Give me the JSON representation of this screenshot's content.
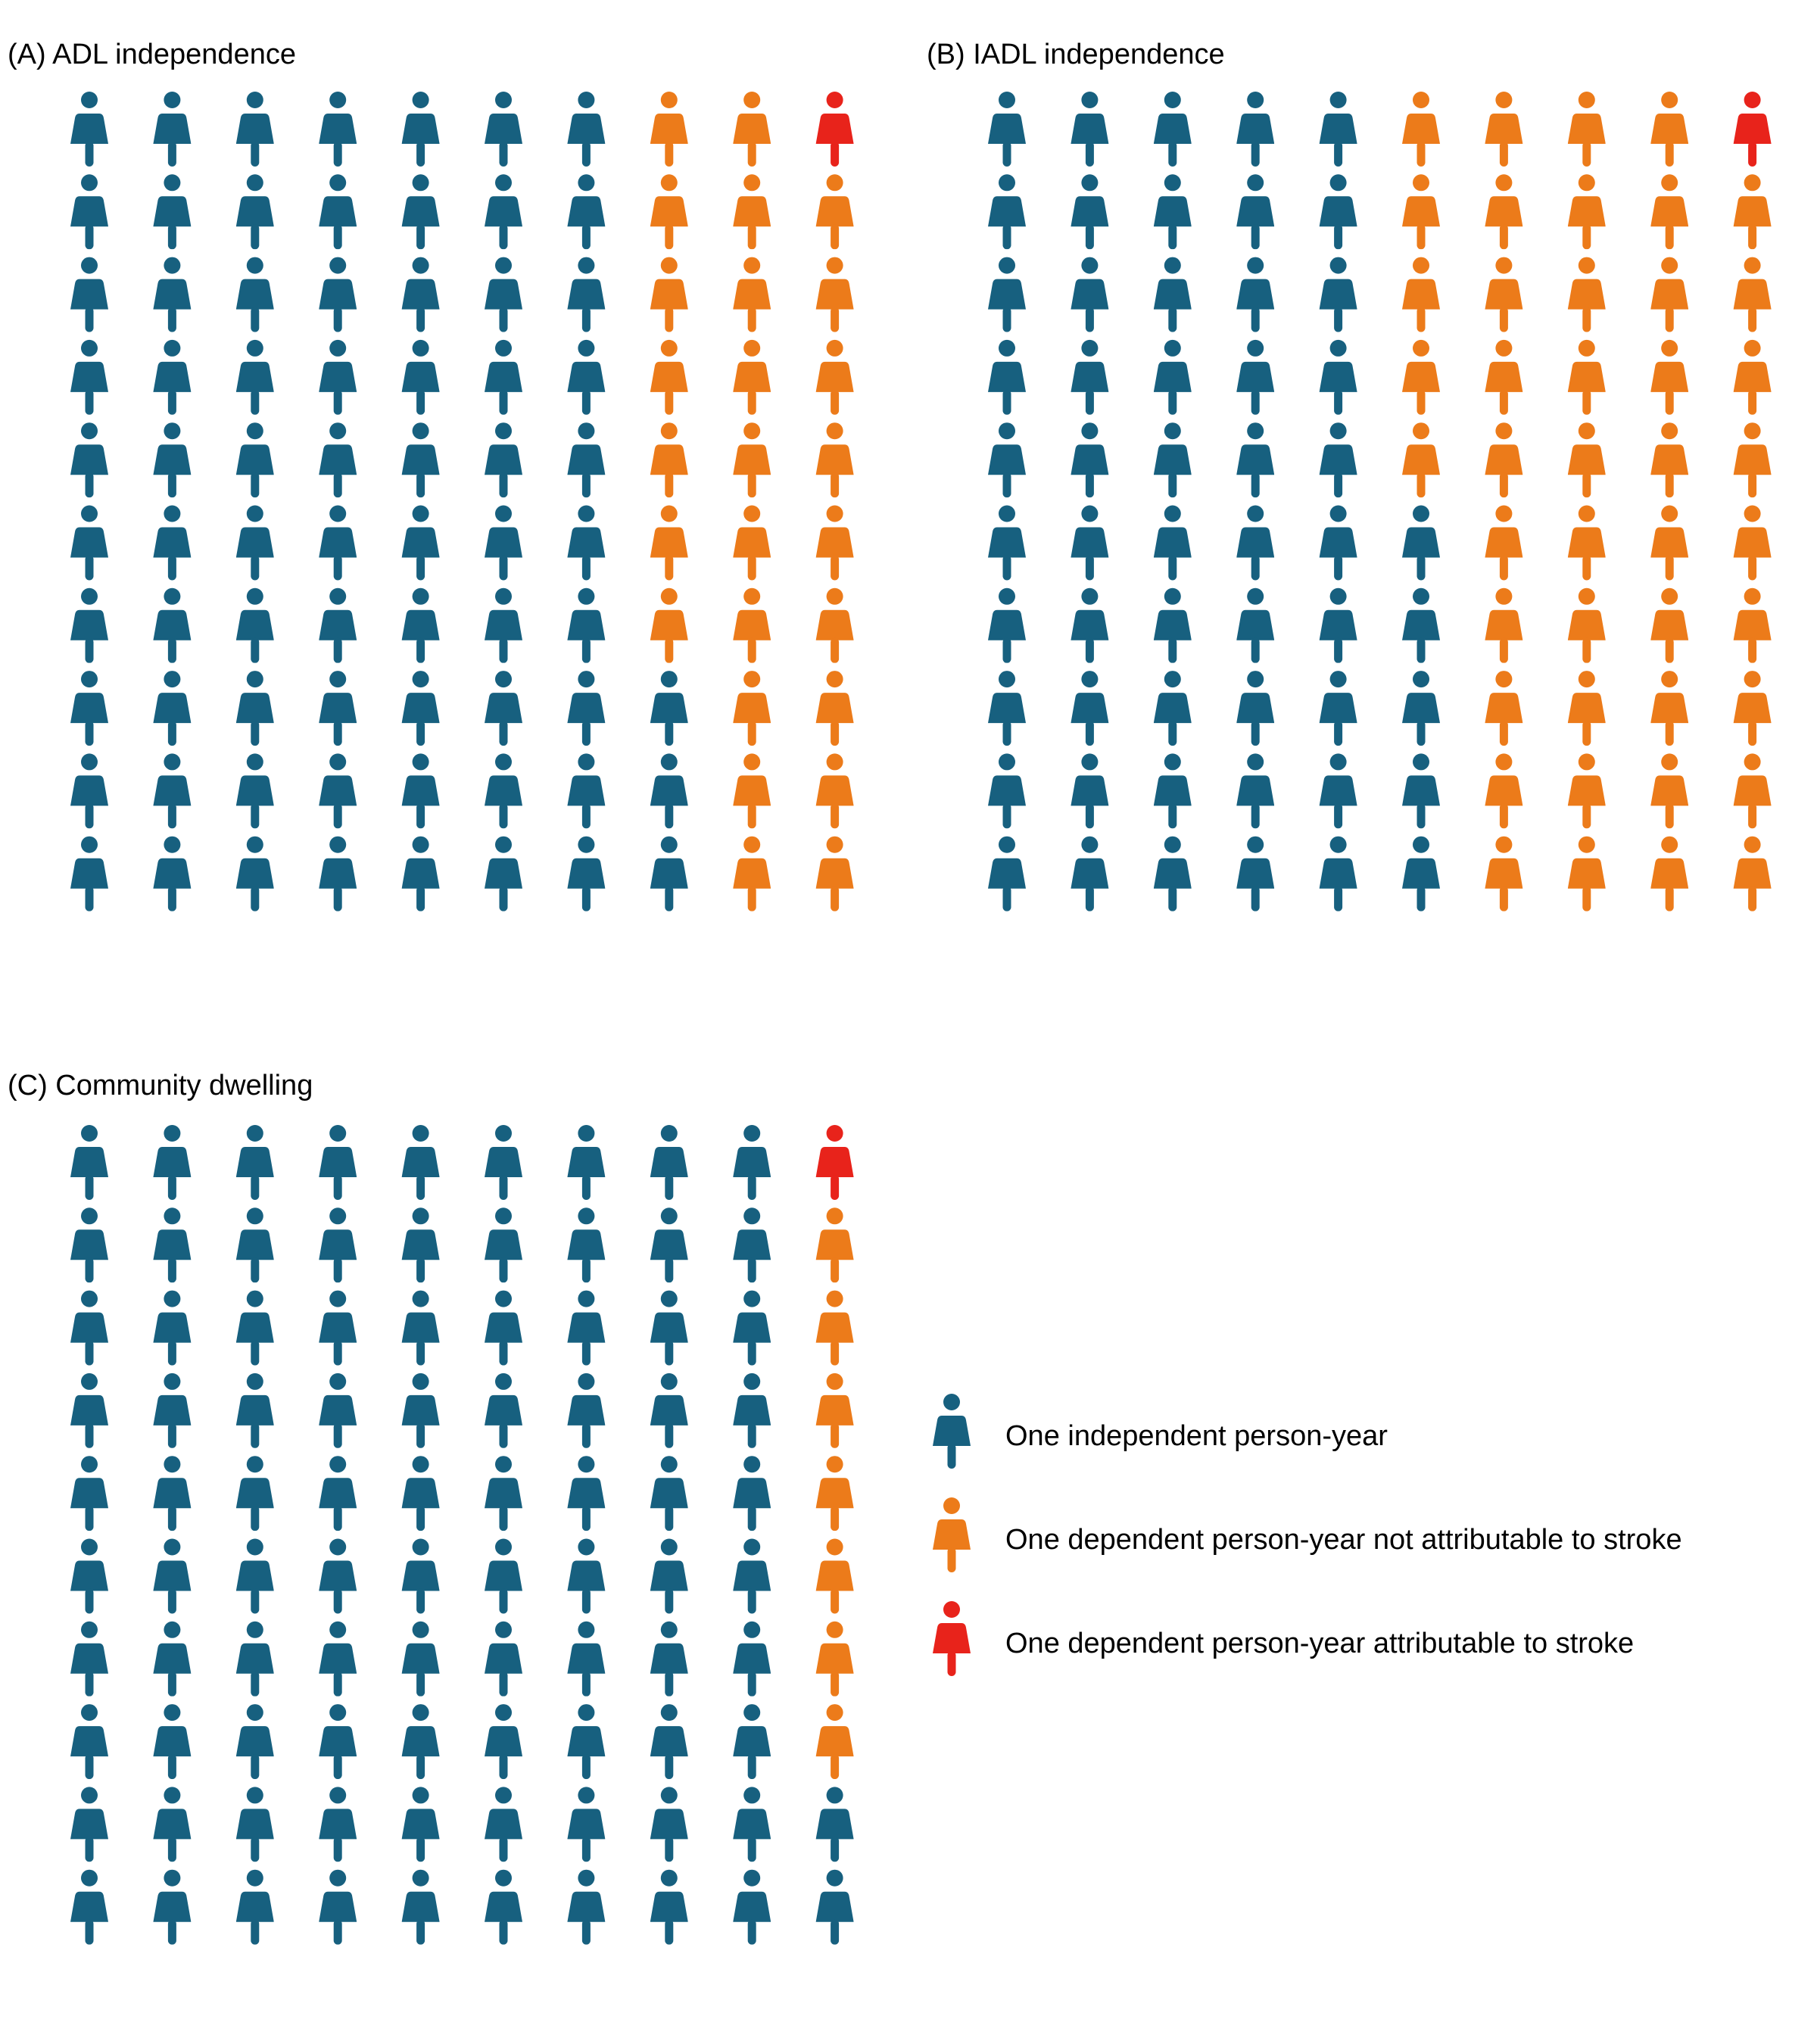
{
  "colors": {
    "independent": "#17607f",
    "dependent_not_stroke": "#ec7b1a",
    "dependent_stroke": "#e8231b"
  },
  "chart_data": [
    {
      "type": "pictogram",
      "title": "(A) ADL independence",
      "grid": {
        "columns": 10,
        "rows": 10
      },
      "fill_order": "column-major from the right-hand column, top to bottom",
      "counts": {
        "independent": 73,
        "dependent_not_stroke": 26,
        "dependent_stroke": 1
      }
    },
    {
      "type": "pictogram",
      "title": "(B) IADL independence",
      "grid": {
        "columns": 10,
        "rows": 10
      },
      "fill_order": "column-major from the right-hand column, top to bottom",
      "counts": {
        "independent": 55,
        "dependent_not_stroke": 44,
        "dependent_stroke": 1
      }
    },
    {
      "type": "pictogram",
      "title": "(C) Community dwelling",
      "grid": {
        "columns": 10,
        "rows": 10
      },
      "fill_order": "column-major from the right-hand column, top to bottom",
      "counts": {
        "independent": 92,
        "dependent_not_stroke": 7,
        "dependent_stroke": 1
      }
    }
  ],
  "legend": [
    {
      "key": "independent",
      "label": "One independent person-year"
    },
    {
      "key": "dependent_not_stroke",
      "label": "One dependent person-year not attributable to stroke"
    },
    {
      "key": "dependent_stroke",
      "label": "One dependent person-year attributable to stroke"
    }
  ]
}
